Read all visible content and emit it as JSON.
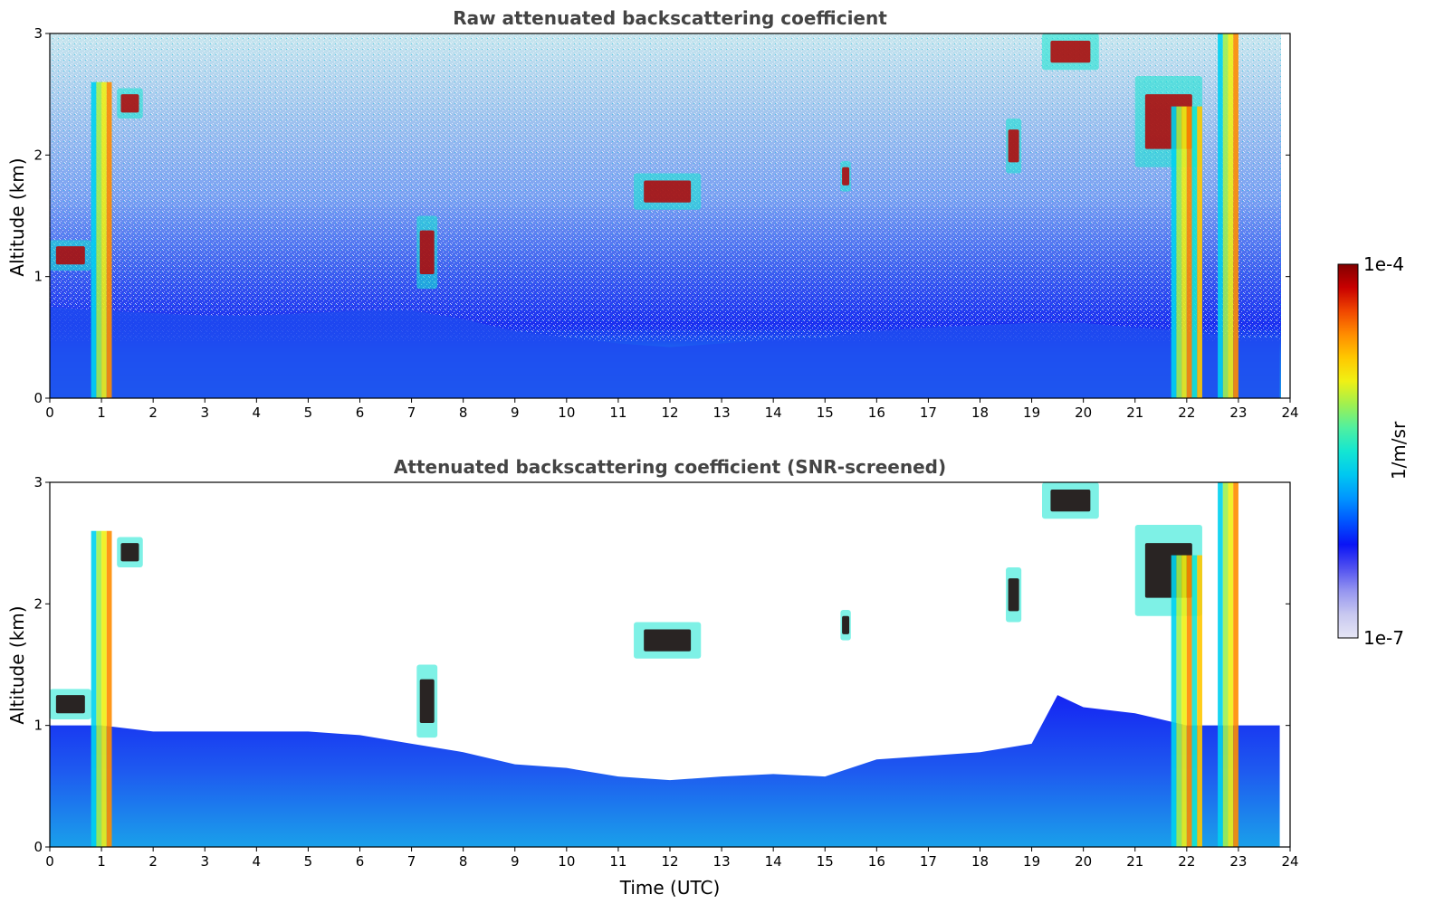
{
  "chart_data": [
    {
      "type": "heatmap",
      "title": "Raw attenuated backscattering coefficient",
      "xlabel": "",
      "ylabel": "Altitude (km)",
      "xlim": [
        0,
        24
      ],
      "ylim": [
        0,
        3
      ],
      "x_ticks": [
        "0",
        "1",
        "2",
        "3",
        "4",
        "5",
        "6",
        "7",
        "8",
        "9",
        "10",
        "11",
        "12",
        "13",
        "14",
        "15",
        "16",
        "17",
        "18",
        "19",
        "20",
        "21",
        "22",
        "23",
        "24"
      ],
      "y_ticks": [
        "0",
        "1",
        "2",
        "3"
      ],
      "boundary_layer_top_km": [
        [
          0,
          0.75
        ],
        [
          1,
          0.72
        ],
        [
          2,
          0.7
        ],
        [
          3,
          0.68
        ],
        [
          4,
          0.68
        ],
        [
          5,
          0.7
        ],
        [
          6,
          0.72
        ],
        [
          7,
          0.72
        ],
        [
          8,
          0.65
        ],
        [
          9,
          0.55
        ],
        [
          10,
          0.5
        ],
        [
          11,
          0.45
        ],
        [
          12,
          0.42
        ],
        [
          13,
          0.45
        ],
        [
          14,
          0.48
        ],
        [
          15,
          0.5
        ],
        [
          16,
          0.55
        ],
        [
          17,
          0.58
        ],
        [
          18,
          0.6
        ],
        [
          19,
          0.62
        ],
        [
          20,
          0.62
        ],
        [
          21,
          0.58
        ],
        [
          22,
          0.55
        ],
        [
          23,
          0.5
        ],
        [
          23.8,
          0.5
        ]
      ],
      "features": [
        {
          "name": "low cloud",
          "t_start": 0.0,
          "t_end": 0.8,
          "alt_km": [
            1.05,
            1.3
          ]
        },
        {
          "name": "cloud column",
          "t_start": 0.8,
          "t_end": 1.2,
          "alt_km": [
            0.0,
            2.6
          ]
        },
        {
          "name": "cloud",
          "t_start": 1.3,
          "t_end": 1.8,
          "alt_km": [
            2.3,
            2.55
          ]
        },
        {
          "name": "cloud",
          "t_start": 7.1,
          "t_end": 7.5,
          "alt_km": [
            0.9,
            1.5
          ]
        },
        {
          "name": "cloud",
          "t_start": 11.3,
          "t_end": 12.6,
          "alt_km": [
            1.55,
            1.85
          ]
        },
        {
          "name": "cloud",
          "t_start": 15.3,
          "t_end": 15.5,
          "alt_km": [
            1.7,
            1.95
          ]
        },
        {
          "name": "cloud",
          "t_start": 18.5,
          "t_end": 18.8,
          "alt_km": [
            1.85,
            2.3
          ]
        },
        {
          "name": "cirrus",
          "t_start": 19.2,
          "t_end": 20.3,
          "alt_km": [
            2.7,
            3.0
          ]
        },
        {
          "name": "cirrus",
          "t_start": 21.0,
          "t_end": 22.3,
          "alt_km": [
            1.9,
            2.65
          ]
        },
        {
          "name": "precipitation column",
          "t_start": 21.7,
          "t_end": 22.3,
          "alt_km": [
            0.0,
            2.4
          ]
        },
        {
          "name": "precipitation column",
          "t_start": 22.6,
          "t_end": 23.0,
          "alt_km": [
            0.0,
            3.0
          ]
        }
      ]
    },
    {
      "type": "heatmap",
      "title": "Attenuated backscattering coefficient (SNR-screened)",
      "xlabel": "Time (UTC)",
      "ylabel": "Altitude (km)",
      "xlim": [
        0,
        24
      ],
      "ylim": [
        0,
        3
      ],
      "x_ticks": [
        "0",
        "1",
        "2",
        "3",
        "4",
        "5",
        "6",
        "7",
        "8",
        "9",
        "10",
        "11",
        "12",
        "13",
        "14",
        "15",
        "16",
        "17",
        "18",
        "19",
        "20",
        "21",
        "22",
        "23",
        "24"
      ],
      "y_ticks": [
        "0",
        "1",
        "2",
        "3"
      ],
      "screened_top_km": [
        [
          0,
          1.0
        ],
        [
          1,
          1.0
        ],
        [
          2,
          0.95
        ],
        [
          3,
          0.95
        ],
        [
          4,
          0.95
        ],
        [
          5,
          0.95
        ],
        [
          6,
          0.92
        ],
        [
          7,
          0.85
        ],
        [
          8,
          0.78
        ],
        [
          9,
          0.68
        ],
        [
          10,
          0.65
        ],
        [
          11,
          0.58
        ],
        [
          12,
          0.55
        ],
        [
          13,
          0.58
        ],
        [
          14,
          0.6
        ],
        [
          15,
          0.58
        ],
        [
          16,
          0.72
        ],
        [
          17,
          0.75
        ],
        [
          18,
          0.78
        ],
        [
          19,
          0.85
        ],
        [
          19.5,
          1.25
        ],
        [
          20,
          1.15
        ],
        [
          21,
          1.1
        ],
        [
          22,
          1.0
        ],
        [
          23,
          1.0
        ],
        [
          23.8,
          1.0
        ]
      ]
    }
  ],
  "colorbar": {
    "label": "1/m/sr",
    "max_label": "1e-4",
    "min_label": "1e-7",
    "colormap": [
      "#e6e6f5",
      "#c8c8f0",
      "#9696f0",
      "#5050f0",
      "#0a14f5",
      "#0055ff",
      "#0096ff",
      "#00c8f0",
      "#14e6d2",
      "#50f0a0",
      "#a0f050",
      "#f0f014",
      "#ffc800",
      "#ff8c00",
      "#f04600",
      "#c80000",
      "#820000"
    ]
  }
}
